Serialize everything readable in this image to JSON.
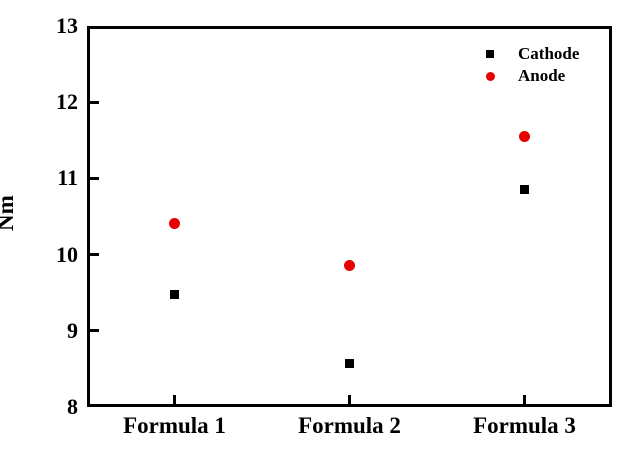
{
  "chart_data": {
    "type": "scatter",
    "title": "",
    "xlabel": "",
    "ylabel": "Nm",
    "categories": [
      "Formula 1",
      "Formula 2",
      "Formula 3"
    ],
    "series": [
      {
        "name": "Cathode",
        "marker": "square",
        "color": "#000000",
        "values": [
          9.48,
          8.57,
          10.86
        ]
      },
      {
        "name": "Anode",
        "marker": "circle",
        "color": "#e60000",
        "values": [
          10.41,
          9.86,
          11.55
        ]
      }
    ],
    "ylim": [
      8,
      13
    ],
    "yticks": [
      8,
      9,
      10,
      11,
      12,
      13
    ],
    "grid": false,
    "legend_position": "top-right"
  },
  "colors": {
    "axis": "#000000",
    "background": "#ffffff",
    "cathode": "#000000",
    "anode": "#e60000"
  }
}
